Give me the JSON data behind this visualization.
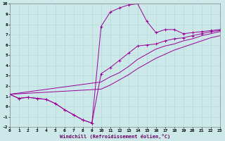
{
  "xlabel": "Windchill (Refroidissement éolien,°C)",
  "bg_color": "#cce8e8",
  "line_color": "#990099",
  "xlim": [
    0,
    23
  ],
  "ylim": [
    -2,
    10
  ],
  "xticks": [
    0,
    1,
    2,
    3,
    4,
    5,
    6,
    7,
    8,
    9,
    10,
    11,
    12,
    13,
    14,
    15,
    16,
    17,
    18,
    19,
    20,
    21,
    22,
    23
  ],
  "yticks": [
    -2,
    -1,
    0,
    1,
    2,
    3,
    4,
    5,
    6,
    7,
    8,
    9,
    10
  ],
  "line1_x": [
    0,
    1,
    2,
    3,
    4,
    5,
    6,
    7,
    8,
    9,
    10,
    11,
    12,
    13,
    14,
    15,
    16,
    17,
    18,
    19,
    20,
    21,
    22,
    23
  ],
  "line1_y": [
    1.2,
    0.8,
    0.9,
    0.8,
    0.7,
    0.3,
    -0.3,
    -0.8,
    -1.3,
    -1.6,
    7.8,
    9.2,
    9.6,
    9.9,
    10.0,
    8.3,
    7.2,
    7.5,
    7.5,
    7.1,
    7.2,
    7.3,
    7.4,
    7.5
  ],
  "line2_x": [
    0,
    1,
    2,
    3,
    4,
    5,
    6,
    7,
    8,
    9,
    10,
    11,
    12,
    13,
    14,
    15,
    16,
    17,
    18,
    19,
    20,
    21,
    22,
    23
  ],
  "line2_y": [
    1.2,
    0.8,
    0.9,
    0.8,
    0.7,
    0.3,
    -0.3,
    -0.8,
    -1.3,
    -1.6,
    3.2,
    3.8,
    4.5,
    5.2,
    5.9,
    6.0,
    6.1,
    6.4,
    6.6,
    6.7,
    6.9,
    7.1,
    7.3,
    7.4
  ],
  "line3_x": [
    0,
    10,
    11,
    12,
    13,
    14,
    15,
    16,
    17,
    18,
    19,
    20,
    21,
    22,
    23
  ],
  "line3_y": [
    1.2,
    2.4,
    2.9,
    3.3,
    3.9,
    4.6,
    5.1,
    5.6,
    5.9,
    6.1,
    6.4,
    6.6,
    6.9,
    7.1,
    7.3
  ],
  "line4_x": [
    0,
    10,
    11,
    12,
    13,
    14,
    15,
    16,
    17,
    18,
    19,
    20,
    21,
    22,
    23
  ],
  "line4_y": [
    1.2,
    1.7,
    2.1,
    2.6,
    3.1,
    3.7,
    4.2,
    4.7,
    5.1,
    5.5,
    5.8,
    6.1,
    6.4,
    6.7,
    6.9
  ]
}
